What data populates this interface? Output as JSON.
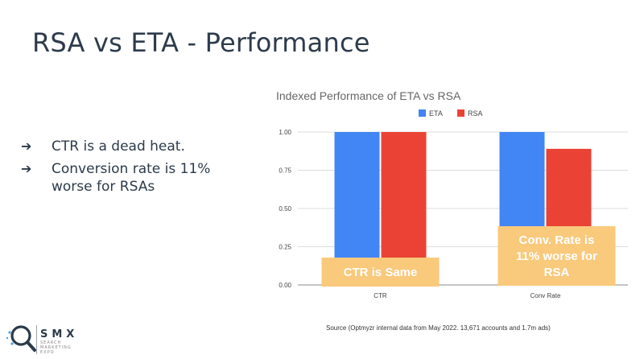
{
  "slide": {
    "title": "RSA vs ETA - Performance",
    "bullets": [
      {
        "arrow": "➔",
        "text": "CTR is a dead heat."
      },
      {
        "arrow": "➔",
        "text": "Conversion rate is 11% worse for RSAs"
      }
    ],
    "source": "Source (Optmyzr internal data from May 2022. 13,671 accounts and 1.7m ads)",
    "logo": {
      "name": "SMX",
      "sub1": "SEARCH",
      "sub2": "MARKETING",
      "sub3": "EXPO",
      "icon": "magnifier-icon"
    }
  },
  "chart_data": {
    "type": "bar",
    "title": "Indexed Performance of ETA vs RSA",
    "categories": [
      "CTR",
      "Conv Rate"
    ],
    "series": [
      {
        "name": "ETA",
        "values": [
          1.0,
          1.0
        ],
        "color": "#4285f4"
      },
      {
        "name": "RSA",
        "values": [
          1.0,
          0.89
        ],
        "color": "#ea4335"
      }
    ],
    "yticks": [
      "0.00",
      "0.25",
      "0.50",
      "0.75",
      "1.00"
    ],
    "ylim": [
      0,
      1.0
    ],
    "legend_position": "top",
    "grid": true,
    "annotations": [
      {
        "text": "CTR is Same",
        "category": "CTR",
        "color": "#f9c97c"
      },
      {
        "text": "Conv. Rate is 11% worse for RSA",
        "category": "Conv Rate",
        "color": "#f9c97c"
      }
    ]
  }
}
